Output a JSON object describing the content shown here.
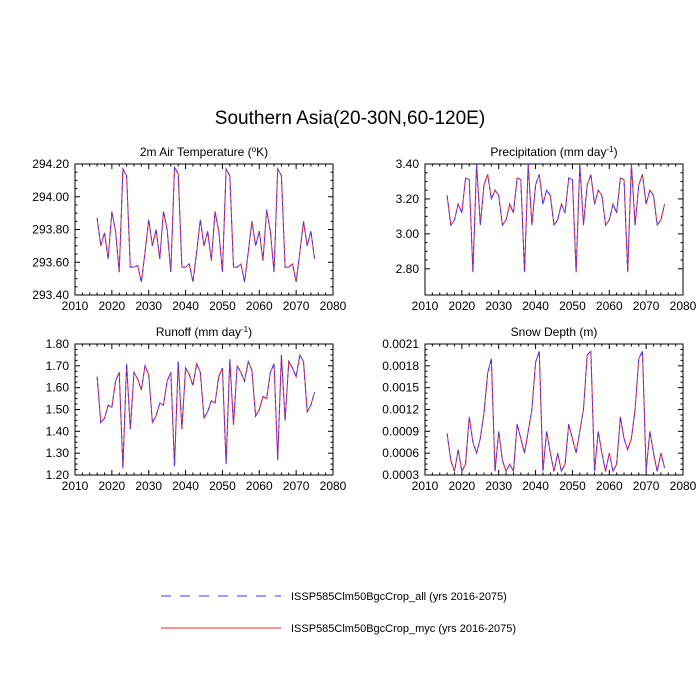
{
  "title": "Southern Asia(20-30N,60-120E)",
  "legend": [
    {
      "label": "ISSP585Clm50BgcCrop_all (yrs 2016-2075)",
      "color": "#3b3bff",
      "dashed": true
    },
    {
      "label": "ISSP585Clm50BgcCrop_myc (yrs 2016-2075)",
      "color": "#ff2020",
      "dashed": false
    }
  ],
  "chart_data": [
    {
      "type": "line",
      "title": "2m Air Temperature (",
      "title_sup": "o",
      "title_tail": "K)",
      "xlim": [
        2010,
        2080
      ],
      "ylim": [
        293.4,
        294.2
      ],
      "xticks": [
        2010,
        2020,
        2030,
        2040,
        2050,
        2060,
        2070,
        2080
      ],
      "yticks": [
        293.4,
        293.6,
        293.8,
        294.0,
        294.2
      ],
      "ytick_labels": [
        "293.40",
        "293.60",
        "293.80",
        "294.00",
        "294.20"
      ],
      "x_start": 2016,
      "series": [
        {
          "values": [
            293.87,
            293.7,
            293.78,
            293.62,
            293.91,
            293.79,
            293.54,
            294.17,
            294.13,
            293.57,
            293.57,
            293.58,
            293.48,
            293.66,
            293.86,
            293.7,
            293.8,
            293.62,
            293.91,
            293.8,
            293.54,
            294.18,
            294.14,
            293.57,
            293.57,
            293.59,
            293.48,
            293.66,
            293.86,
            293.7,
            293.79,
            293.61,
            293.91,
            293.79,
            293.54,
            294.17,
            294.13,
            293.57,
            293.57,
            293.59,
            293.48,
            293.66,
            293.85,
            293.7,
            293.79,
            293.61,
            293.92,
            293.79,
            293.54,
            294.17,
            294.13,
            293.57,
            293.57,
            293.59,
            293.48,
            293.66,
            293.85,
            293.7,
            293.79,
            293.62
          ]
        },
        {
          "values": [
            293.87,
            293.7,
            293.78,
            293.62,
            293.91,
            293.79,
            293.54,
            294.17,
            294.13,
            293.57,
            293.57,
            293.58,
            293.48,
            293.66,
            293.86,
            293.7,
            293.8,
            293.62,
            293.91,
            293.8,
            293.54,
            294.18,
            294.14,
            293.57,
            293.57,
            293.59,
            293.48,
            293.66,
            293.86,
            293.7,
            293.79,
            293.61,
            293.91,
            293.79,
            293.54,
            294.17,
            294.13,
            293.57,
            293.57,
            293.59,
            293.48,
            293.66,
            293.85,
            293.7,
            293.79,
            293.61,
            293.92,
            293.79,
            293.54,
            294.17,
            294.13,
            293.57,
            293.57,
            293.59,
            293.48,
            293.66,
            293.85,
            293.7,
            293.79,
            293.62
          ]
        }
      ]
    },
    {
      "type": "line",
      "title": "Precipitation (mm day",
      "title_sup": "-1",
      "title_tail": ")",
      "xlim": [
        2010,
        2080
      ],
      "ylim": [
        2.65,
        3.4
      ],
      "xticks": [
        2010,
        2020,
        2030,
        2040,
        2050,
        2060,
        2070,
        2080
      ],
      "yticks": [
        2.8,
        3.0,
        3.2,
        3.4
      ],
      "ytick_labels": [
        "2.80",
        "3.00",
        "3.20",
        "3.40"
      ],
      "x_start": 2016,
      "series": [
        {
          "values": [
            3.22,
            3.05,
            3.08,
            3.17,
            3.12,
            3.32,
            3.31,
            2.78,
            3.4,
            3.05,
            3.28,
            3.34,
            3.2,
            3.25,
            3.22,
            3.05,
            3.08,
            3.17,
            3.12,
            3.32,
            3.31,
            2.78,
            3.4,
            3.05,
            3.28,
            3.34,
            3.17,
            3.25,
            3.22,
            3.05,
            3.08,
            3.17,
            3.12,
            3.32,
            3.31,
            2.78,
            3.4,
            3.05,
            3.28,
            3.34,
            3.17,
            3.25,
            3.22,
            3.05,
            3.08,
            3.17,
            3.12,
            3.32,
            3.31,
            2.78,
            3.4,
            3.05,
            3.28,
            3.34,
            3.17,
            3.25,
            3.22,
            3.05,
            3.08,
            3.17
          ]
        },
        {
          "values": [
            3.22,
            3.05,
            3.08,
            3.17,
            3.12,
            3.32,
            3.31,
            2.78,
            3.4,
            3.05,
            3.28,
            3.34,
            3.2,
            3.25,
            3.22,
            3.05,
            3.08,
            3.17,
            3.12,
            3.32,
            3.31,
            2.78,
            3.4,
            3.05,
            3.28,
            3.34,
            3.17,
            3.25,
            3.22,
            3.05,
            3.08,
            3.17,
            3.12,
            3.32,
            3.31,
            2.78,
            3.4,
            3.05,
            3.28,
            3.34,
            3.17,
            3.25,
            3.22,
            3.05,
            3.08,
            3.17,
            3.12,
            3.32,
            3.31,
            2.78,
            3.4,
            3.05,
            3.28,
            3.34,
            3.17,
            3.25,
            3.22,
            3.05,
            3.08,
            3.17
          ]
        }
      ]
    },
    {
      "type": "line",
      "title": "Runoff (mm day",
      "title_sup": "-1",
      "title_tail": ")",
      "xlim": [
        2010,
        2080
      ],
      "ylim": [
        1.2,
        1.8
      ],
      "xticks": [
        2010,
        2020,
        2030,
        2040,
        2050,
        2060,
        2070,
        2080
      ],
      "yticks": [
        1.2,
        1.3,
        1.4,
        1.5,
        1.6,
        1.7,
        1.8
      ],
      "ytick_labels": [
        "1.20",
        "1.30",
        "1.40",
        "1.50",
        "1.60",
        "1.70",
        "1.80"
      ],
      "x_start": 2016,
      "series": [
        {
          "values": [
            1.65,
            1.44,
            1.46,
            1.52,
            1.51,
            1.63,
            1.67,
            1.23,
            1.71,
            1.41,
            1.67,
            1.64,
            1.59,
            1.7,
            1.66,
            1.44,
            1.47,
            1.53,
            1.52,
            1.63,
            1.67,
            1.24,
            1.72,
            1.41,
            1.69,
            1.66,
            1.61,
            1.71,
            1.67,
            1.46,
            1.49,
            1.54,
            1.53,
            1.65,
            1.69,
            1.25,
            1.73,
            1.43,
            1.7,
            1.67,
            1.63,
            1.72,
            1.68,
            1.47,
            1.5,
            1.56,
            1.55,
            1.67,
            1.71,
            1.27,
            1.75,
            1.45,
            1.72,
            1.69,
            1.65,
            1.75,
            1.72,
            1.49,
            1.52,
            1.58
          ]
        },
        {
          "values": [
            1.65,
            1.44,
            1.46,
            1.52,
            1.51,
            1.63,
            1.67,
            1.23,
            1.71,
            1.41,
            1.67,
            1.64,
            1.59,
            1.7,
            1.66,
            1.44,
            1.47,
            1.53,
            1.52,
            1.63,
            1.67,
            1.24,
            1.72,
            1.41,
            1.69,
            1.66,
            1.61,
            1.71,
            1.67,
            1.46,
            1.49,
            1.54,
            1.53,
            1.65,
            1.69,
            1.25,
            1.73,
            1.43,
            1.7,
            1.67,
            1.63,
            1.72,
            1.68,
            1.47,
            1.5,
            1.56,
            1.55,
            1.67,
            1.71,
            1.27,
            1.75,
            1.45,
            1.72,
            1.69,
            1.65,
            1.75,
            1.72,
            1.49,
            1.52,
            1.58
          ]
        }
      ]
    },
    {
      "type": "line",
      "title": "Snow Depth (m)",
      "title_sup": "",
      "title_tail": "",
      "xlim": [
        2010,
        2080
      ],
      "ylim": [
        0.0003,
        0.0021
      ],
      "xticks": [
        2010,
        2020,
        2030,
        2040,
        2050,
        2060,
        2070,
        2080
      ],
      "yticks": [
        0.0003,
        0.0006,
        0.0009,
        0.0012,
        0.0015,
        0.0018,
        0.0021
      ],
      "ytick_labels": [
        "0.0003",
        "0.0006",
        "0.0009",
        "0.0012",
        "0.0015",
        "0.0018",
        "0.0021"
      ],
      "x_start": 2016,
      "series": [
        {
          "values": [
            0.00087,
            0.0005,
            0.00035,
            0.00065,
            0.00035,
            0.00045,
            0.0011,
            0.00075,
            0.0006,
            0.0008,
            0.00115,
            0.0017,
            0.0019,
            0.00035,
            0.0009,
            0.0005,
            0.00035,
            0.00045,
            0.00035,
            0.001,
            0.0008,
            0.0006,
            0.0009,
            0.0012,
            0.00185,
            0.002,
            0.00035,
            0.0009,
            0.0006,
            0.00035,
            0.0006,
            0.00035,
            0.00045,
            0.001,
            0.0008,
            0.0006,
            0.0009,
            0.0012,
            0.00195,
            0.002,
            0.00035,
            0.0009,
            0.0006,
            0.00035,
            0.0006,
            0.00035,
            0.00045,
            0.0011,
            0.0008,
            0.00065,
            0.0008,
            0.0012,
            0.0019,
            0.002,
            0.00035,
            0.0009,
            0.0006,
            0.00035,
            0.0006,
            0.0004
          ]
        },
        {
          "values": [
            0.00087,
            0.0005,
            0.00035,
            0.00065,
            0.00035,
            0.00045,
            0.0011,
            0.00075,
            0.0006,
            0.0008,
            0.00115,
            0.0017,
            0.0019,
            0.00035,
            0.0009,
            0.0005,
            0.00035,
            0.00045,
            0.00035,
            0.001,
            0.0008,
            0.0006,
            0.0009,
            0.0012,
            0.00185,
            0.002,
            0.00035,
            0.0009,
            0.0006,
            0.00035,
            0.0006,
            0.00035,
            0.00045,
            0.001,
            0.0008,
            0.0006,
            0.0009,
            0.0012,
            0.00195,
            0.002,
            0.00035,
            0.0009,
            0.0006,
            0.00035,
            0.0006,
            0.00035,
            0.00045,
            0.0011,
            0.0008,
            0.00065,
            0.0008,
            0.0012,
            0.0019,
            0.002,
            0.00035,
            0.0009,
            0.0006,
            0.00035,
            0.0006,
            0.0004
          ]
        }
      ]
    }
  ]
}
